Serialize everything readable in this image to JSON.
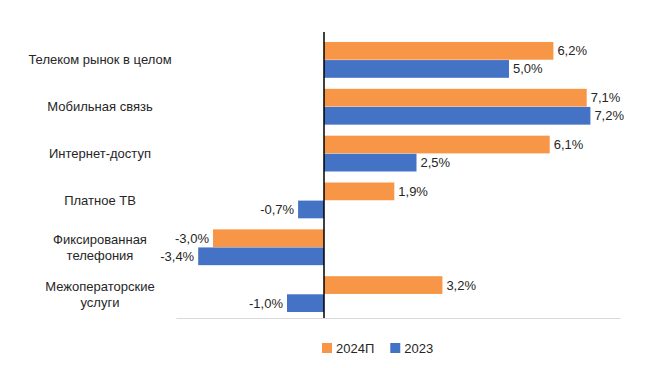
{
  "chart_data": {
    "type": "bar",
    "orientation": "horizontal",
    "categories": [
      "Телеком рынок в целом",
      "Мобильная связь",
      "Интернет-доступ",
      "Платное ТВ",
      "Фиксированная\nтелефония",
      "Межоператорские\nуслуги"
    ],
    "series": [
      {
        "name": "2024П",
        "color": "#F79646",
        "values": [
          6.2,
          7.1,
          6.1,
          1.9,
          -3.0,
          3.2
        ],
        "value_labels": [
          "6,2%",
          "7,1%",
          "6,1%",
          "1,9%",
          "-3,0%",
          "3,2%"
        ]
      },
      {
        "name": "2023",
        "color": "#4472C4",
        "values": [
          5.0,
          7.2,
          2.5,
          -0.7,
          -3.4,
          -1.0
        ],
        "value_labels": [
          "5,0%",
          "7,2%",
          "2,5%",
          "-0,7%",
          "-3,4%",
          "-1,0%"
        ]
      }
    ],
    "xlim": [
      -4,
      8
    ],
    "xticks": [
      0
    ],
    "tick_labels": false,
    "data_labels": true,
    "grid": false,
    "legend": "bottom"
  }
}
